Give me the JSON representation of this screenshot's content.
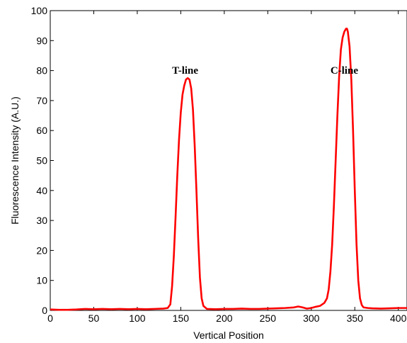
{
  "chart_data": {
    "type": "line",
    "title": "",
    "xlabel": "Vertical Position",
    "ylabel": "Fluorescence Intensity (A.U.)",
    "xlim": [
      0,
      410
    ],
    "ylim": [
      0,
      100
    ],
    "x_ticks": [
      0,
      50,
      100,
      150,
      200,
      250,
      300,
      350,
      400
    ],
    "y_ticks": [
      0,
      10,
      20,
      30,
      40,
      50,
      60,
      70,
      80,
      90,
      100
    ],
    "grid": false,
    "line_color": "#ff0000",
    "series": [
      {
        "x": [
          0,
          10,
          20,
          30,
          40,
          50,
          60,
          70,
          80,
          90,
          100,
          110,
          120,
          130,
          135,
          138,
          140,
          142,
          144,
          146,
          148,
          150,
          152,
          154,
          156,
          158,
          160,
          162,
          164,
          166,
          168,
          170,
          172,
          174,
          176,
          180,
          190,
          200,
          210,
          220,
          230,
          240,
          250,
          260,
          270,
          280,
          285,
          290,
          295,
          300,
          305,
          310,
          315,
          318,
          320,
          322,
          324,
          326,
          328,
          330,
          332,
          334,
          336,
          338,
          340,
          341,
          342,
          344,
          346,
          348,
          350,
          352,
          354,
          356,
          358,
          360,
          365,
          370,
          380,
          390,
          400,
          410
        ],
        "y": [
          0.3,
          0.2,
          0.2,
          0.3,
          0.5,
          0.4,
          0.5,
          0.4,
          0.5,
          0.4,
          0.5,
          0.4,
          0.5,
          0.6,
          0.8,
          2,
          8,
          18,
          31,
          45,
          57,
          66,
          72,
          75,
          77,
          77.5,
          77,
          74,
          67,
          55,
          40,
          24,
          11,
          4,
          1.5,
          0.5,
          0.4,
          0.5,
          0.5,
          0.6,
          0.5,
          0.5,
          0.6,
          0.7,
          0.8,
          1.0,
          1.3,
          1.0,
          0.6,
          0.8,
          1.2,
          1.5,
          2.5,
          4,
          7,
          13,
          22,
          35,
          50,
          65,
          78,
          87,
          91,
          93,
          94,
          94,
          93,
          88,
          77,
          60,
          40,
          22,
          10,
          4,
          1.8,
          1.0,
          0.8,
          0.7,
          0.6,
          0.7,
          0.8,
          0.8
        ]
      }
    ],
    "annotations": [
      {
        "text": "T-line",
        "x": 140,
        "y": 79
      },
      {
        "text": "C-line",
        "x": 322,
        "y": 79
      }
    ]
  }
}
